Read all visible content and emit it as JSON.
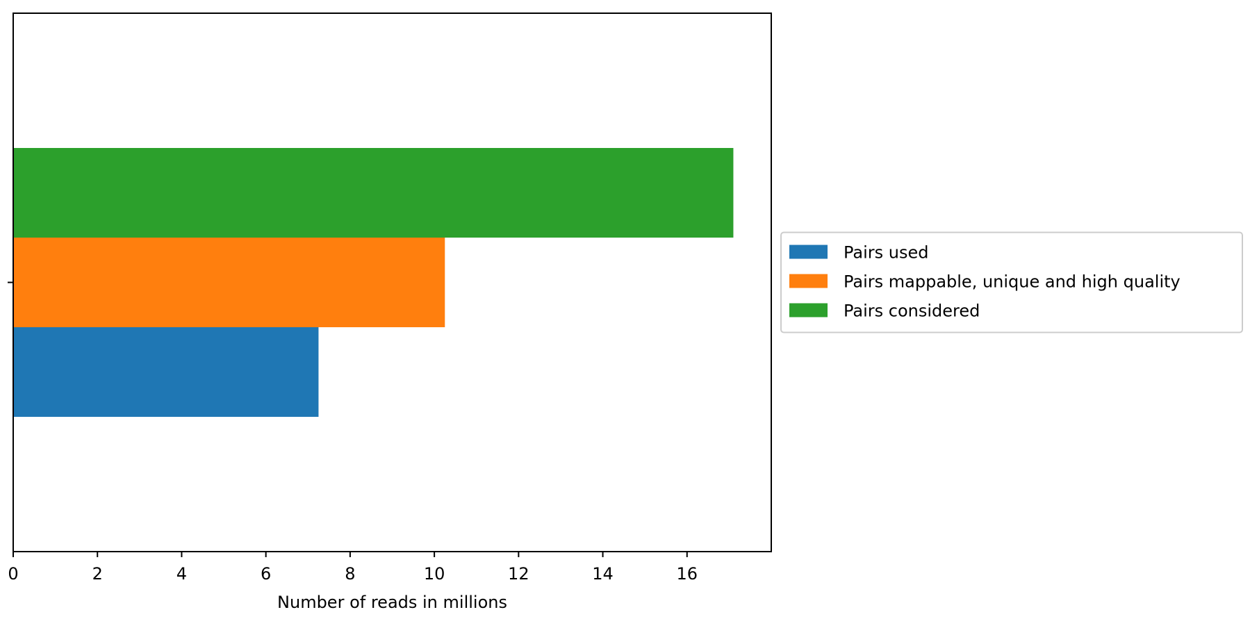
{
  "chart_data": {
    "type": "bar",
    "orientation": "horizontal",
    "categories": [
      ""
    ],
    "series": [
      {
        "name": "Pairs used",
        "values": [
          7.25
        ],
        "color": "#1f77b4"
      },
      {
        "name": "Pairs mappable, unique and high quality",
        "values": [
          10.25
        ],
        "color": "#ff7f0e"
      },
      {
        "name": "Pairs considered",
        "values": [
          17.1
        ],
        "color": "#2ca02c"
      }
    ],
    "title": "",
    "xlabel": "Number of reads in millions",
    "ylabel": "",
    "xlim": [
      0,
      18
    ],
    "x_ticks": [
      0,
      2,
      4,
      6,
      8,
      10,
      12,
      14,
      16
    ],
    "grid": false,
    "legend": "center-right-outside"
  }
}
